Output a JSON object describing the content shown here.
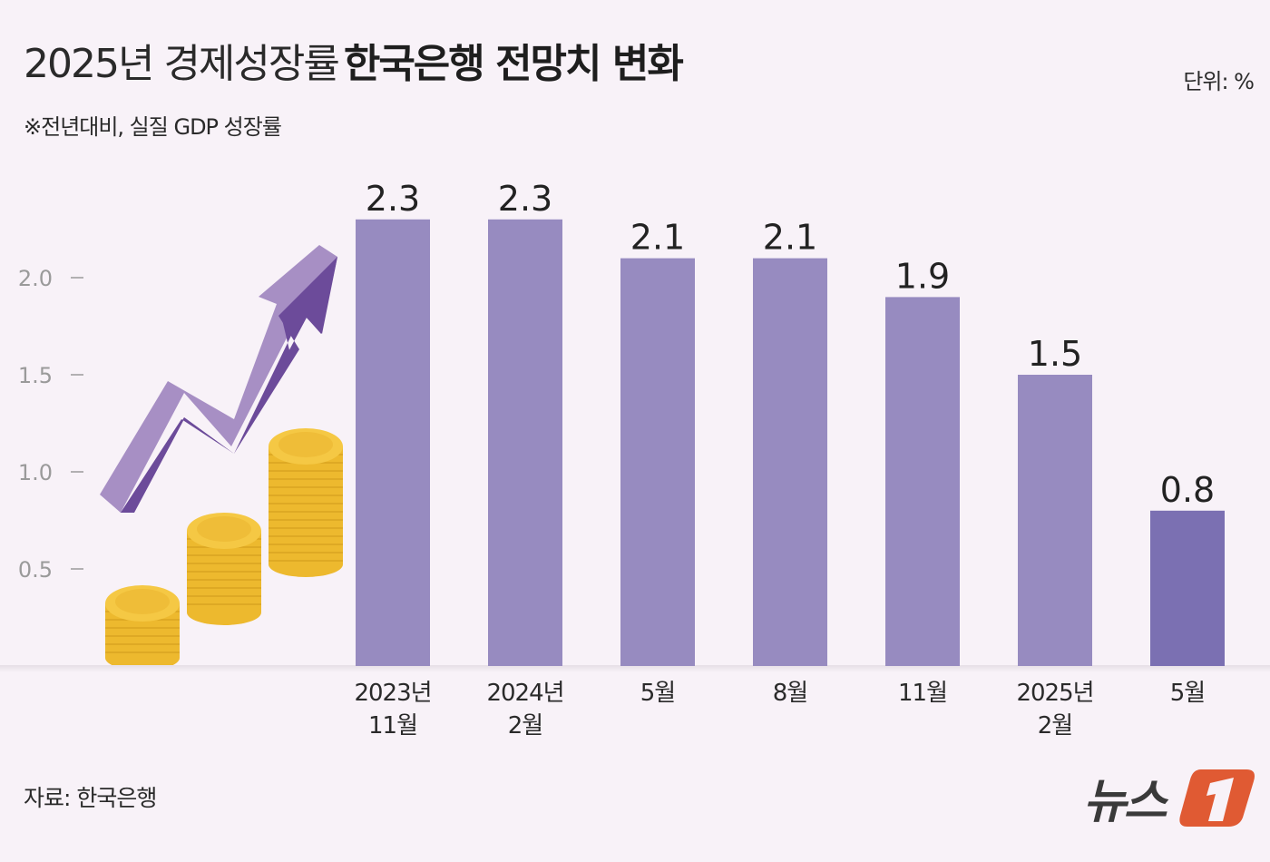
{
  "title": {
    "light": "2025년 경제성장률",
    "bold": "한국은행 전망치 변화"
  },
  "subtitle": "※전년대비, 실질 GDP 성장률",
  "unit": "단위: %",
  "source": "자료: 한국은행",
  "logo": {
    "text": "뉴스1"
  },
  "colors": {
    "background": "#f8f2f8",
    "bar": "#978bc0",
    "bar_highlight": "#7b70b2",
    "arrow_light": "#a78fc4",
    "arrow_dark": "#6c4b9a",
    "coin": "#f2c23c",
    "logo_red": "#e05a33"
  },
  "decoration": {
    "icons": [
      "rising-arrow-icon",
      "coin-stacks-icon"
    ]
  },
  "chart_data": {
    "type": "bar",
    "categories": [
      [
        "2023년",
        "11월"
      ],
      [
        "2024년",
        "2월"
      ],
      [
        "5월"
      ],
      [
        "8월"
      ],
      [
        "11월"
      ],
      [
        "2025년",
        "2월"
      ],
      [
        "5월"
      ]
    ],
    "values": [
      2.3,
      2.3,
      2.1,
      2.1,
      1.9,
      1.5,
      0.8
    ],
    "data_labels": [
      "2.3",
      "2.3",
      "2.1",
      "2.1",
      "1.9",
      "1.5",
      "0.8"
    ],
    "highlight_index": 6,
    "yticks": [
      "0.5",
      "1.0",
      "1.5",
      "2.0"
    ],
    "ylim": [
      0,
      2.3
    ],
    "grid": false,
    "xlabel": "",
    "ylabel": ""
  }
}
